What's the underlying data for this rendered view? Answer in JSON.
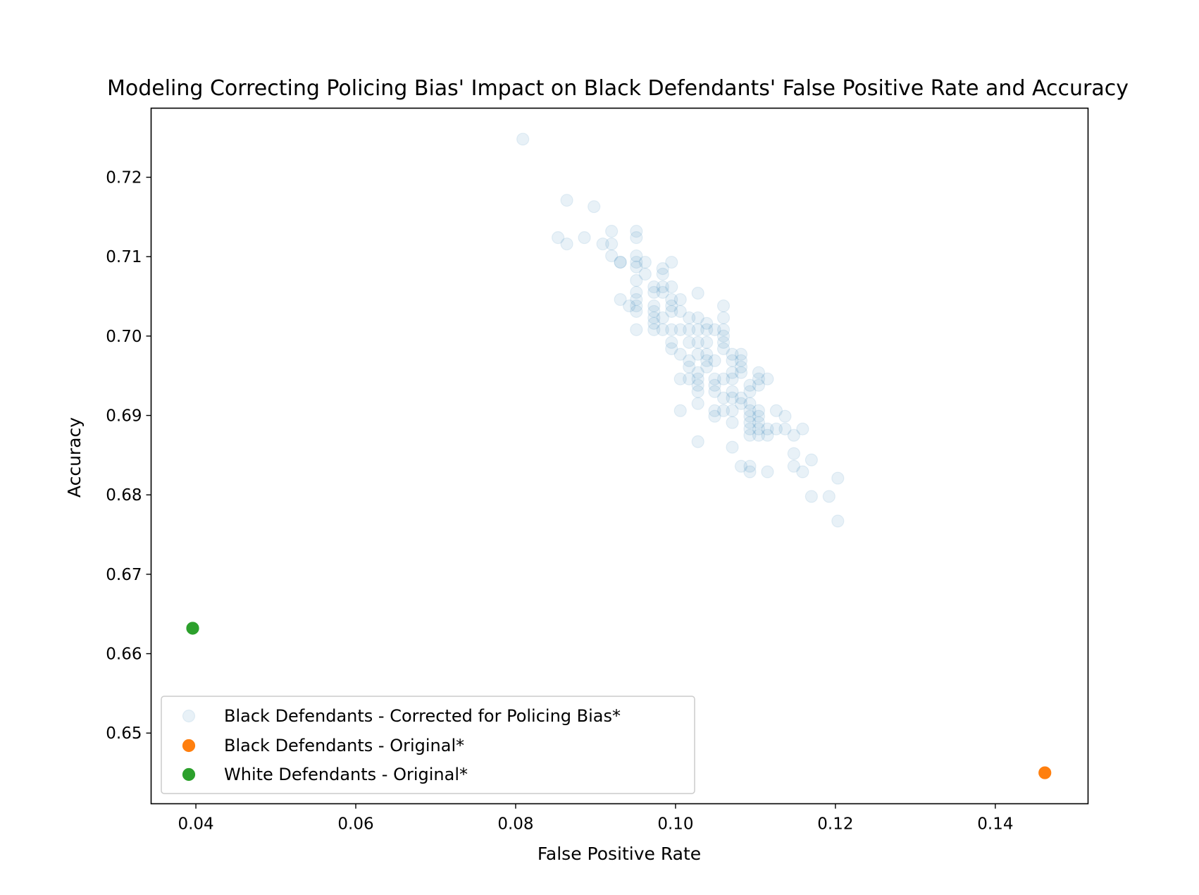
{
  "chart_data": {
    "type": "scatter",
    "title": "Modeling Correcting Policing Bias' Impact on Black Defendants' False Positive Rate and Accuracy",
    "xlabel": "False Positive Rate",
    "ylabel": "Accuracy",
    "xlim": [
      0.0344,
      0.1516
    ],
    "ylim": [
      0.6411,
      0.7287
    ],
    "xticks": [
      0.04,
      0.06,
      0.08,
      0.1,
      0.12,
      0.14
    ],
    "xtick_labels": [
      "0.04",
      "0.06",
      "0.08",
      "0.10",
      "0.12",
      "0.14"
    ],
    "yticks": [
      0.65,
      0.66,
      0.67,
      0.68,
      0.69,
      0.7,
      0.71,
      0.72
    ],
    "ytick_labels": [
      "0.65",
      "0.66",
      "0.67",
      "0.68",
      "0.69",
      "0.70",
      "0.71",
      "0.72"
    ],
    "grid": false,
    "legend_position": "lower-left",
    "series": [
      {
        "name": "Black Defendants - Corrected for Policing Bias*",
        "color": "#1f77b4",
        "alpha": 0.1,
        "filled": true,
        "points": [
          [
            0.0809,
            0.7248
          ],
          [
            0.0864,
            0.7171
          ],
          [
            0.0898,
            0.7163
          ],
          [
            0.0853,
            0.7124
          ],
          [
            0.0864,
            0.7116
          ],
          [
            0.0886,
            0.7124
          ],
          [
            0.0909,
            0.7116
          ],
          [
            0.092,
            0.7132
          ],
          [
            0.092,
            0.7116
          ],
          [
            0.092,
            0.7101
          ],
          [
            0.0931,
            0.7093
          ],
          [
            0.0931,
            0.7093
          ],
          [
            0.0951,
            0.7132
          ],
          [
            0.0951,
            0.7124
          ],
          [
            0.0951,
            0.7101
          ],
          [
            0.0951,
            0.7093
          ],
          [
            0.0951,
            0.7087
          ],
          [
            0.0951,
            0.707
          ],
          [
            0.0951,
            0.7055
          ],
          [
            0.0951,
            0.7046
          ],
          [
            0.0951,
            0.7038
          ],
          [
            0.0951,
            0.7031
          ],
          [
            0.0951,
            0.7008
          ],
          [
            0.0931,
            0.7046
          ],
          [
            0.0942,
            0.7038
          ],
          [
            0.0962,
            0.7093
          ],
          [
            0.0962,
            0.7078
          ],
          [
            0.0973,
            0.7062
          ],
          [
            0.0973,
            0.7055
          ],
          [
            0.0973,
            0.7038
          ],
          [
            0.0973,
            0.7031
          ],
          [
            0.0973,
            0.7023
          ],
          [
            0.0973,
            0.7016
          ],
          [
            0.0973,
            0.7008
          ],
          [
            0.0984,
            0.7085
          ],
          [
            0.0984,
            0.7078
          ],
          [
            0.0984,
            0.7062
          ],
          [
            0.0984,
            0.7055
          ],
          [
            0.0984,
            0.7023
          ],
          [
            0.0984,
            0.7008
          ],
          [
            0.0995,
            0.7093
          ],
          [
            0.0995,
            0.7062
          ],
          [
            0.0995,
            0.7046
          ],
          [
            0.0995,
            0.7038
          ],
          [
            0.0995,
            0.7031
          ],
          [
            0.0995,
            0.7008
          ],
          [
            0.0995,
            0.6992
          ],
          [
            0.0995,
            0.6984
          ],
          [
            0.1006,
            0.7046
          ],
          [
            0.1006,
            0.7031
          ],
          [
            0.1006,
            0.7008
          ],
          [
            0.1006,
            0.6977
          ],
          [
            0.1006,
            0.6946
          ],
          [
            0.1006,
            0.6906
          ],
          [
            0.1017,
            0.7023
          ],
          [
            0.1017,
            0.7008
          ],
          [
            0.1017,
            0.6992
          ],
          [
            0.1017,
            0.6969
          ],
          [
            0.1017,
            0.6961
          ],
          [
            0.1017,
            0.6946
          ],
          [
            0.1028,
            0.7054
          ],
          [
            0.1028,
            0.7023
          ],
          [
            0.1028,
            0.7008
          ],
          [
            0.1028,
            0.6992
          ],
          [
            0.1028,
            0.6977
          ],
          [
            0.1028,
            0.6954
          ],
          [
            0.1028,
            0.6946
          ],
          [
            0.1028,
            0.6938
          ],
          [
            0.1028,
            0.693
          ],
          [
            0.1028,
            0.6915
          ],
          [
            0.1028,
            0.6867
          ],
          [
            0.1039,
            0.7016
          ],
          [
            0.1039,
            0.7008
          ],
          [
            0.1039,
            0.6992
          ],
          [
            0.1039,
            0.6977
          ],
          [
            0.1039,
            0.6969
          ],
          [
            0.1039,
            0.6961
          ],
          [
            0.1049,
            0.7008
          ],
          [
            0.1049,
            0.6969
          ],
          [
            0.1049,
            0.6946
          ],
          [
            0.1049,
            0.6938
          ],
          [
            0.1049,
            0.693
          ],
          [
            0.1049,
            0.6906
          ],
          [
            0.1049,
            0.6899
          ],
          [
            0.106,
            0.7038
          ],
          [
            0.106,
            0.7023
          ],
          [
            0.106,
            0.7008
          ],
          [
            0.106,
            0.7
          ],
          [
            0.106,
            0.6992
          ],
          [
            0.106,
            0.6984
          ],
          [
            0.106,
            0.6946
          ],
          [
            0.106,
            0.6922
          ],
          [
            0.106,
            0.6906
          ],
          [
            0.1071,
            0.6977
          ],
          [
            0.1071,
            0.6969
          ],
          [
            0.1071,
            0.6954
          ],
          [
            0.1071,
            0.6946
          ],
          [
            0.1071,
            0.693
          ],
          [
            0.1071,
            0.6922
          ],
          [
            0.1071,
            0.6906
          ],
          [
            0.1071,
            0.6891
          ],
          [
            0.1071,
            0.686
          ],
          [
            0.1082,
            0.6977
          ],
          [
            0.1082,
            0.6969
          ],
          [
            0.1082,
            0.6961
          ],
          [
            0.1082,
            0.6954
          ],
          [
            0.1082,
            0.6922
          ],
          [
            0.1082,
            0.6915
          ],
          [
            0.1082,
            0.6836
          ],
          [
            0.1093,
            0.6938
          ],
          [
            0.1093,
            0.693
          ],
          [
            0.1093,
            0.6915
          ],
          [
            0.1093,
            0.6906
          ],
          [
            0.1093,
            0.6899
          ],
          [
            0.1093,
            0.6891
          ],
          [
            0.1093,
            0.6883
          ],
          [
            0.1093,
            0.6875
          ],
          [
            0.1093,
            0.6836
          ],
          [
            0.1093,
            0.6829
          ],
          [
            0.1104,
            0.6954
          ],
          [
            0.1104,
            0.6946
          ],
          [
            0.1104,
            0.6938
          ],
          [
            0.1104,
            0.6906
          ],
          [
            0.1104,
            0.6899
          ],
          [
            0.1104,
            0.6891
          ],
          [
            0.1104,
            0.6883
          ],
          [
            0.1104,
            0.6875
          ],
          [
            0.1115,
            0.6946
          ],
          [
            0.1115,
            0.6883
          ],
          [
            0.1115,
            0.6875
          ],
          [
            0.1115,
            0.6829
          ],
          [
            0.1126,
            0.6906
          ],
          [
            0.1126,
            0.6883
          ],
          [
            0.1137,
            0.6899
          ],
          [
            0.1137,
            0.6883
          ],
          [
            0.1148,
            0.6875
          ],
          [
            0.1148,
            0.6852
          ],
          [
            0.1148,
            0.6836
          ],
          [
            0.1159,
            0.6883
          ],
          [
            0.1159,
            0.6829
          ],
          [
            0.117,
            0.6844
          ],
          [
            0.117,
            0.6798
          ],
          [
            0.1192,
            0.6798
          ],
          [
            0.1203,
            0.6821
          ],
          [
            0.1203,
            0.6767
          ]
        ]
      },
      {
        "name": "Black Defendants - Original*",
        "color": "#ff7f0e",
        "alpha": 1,
        "filled": true,
        "points": [
          [
            0.1462,
            0.645
          ]
        ]
      },
      {
        "name": "White Defendants - Original*",
        "color": "#2ca02c",
        "alpha": 1,
        "filled": true,
        "points": [
          [
            0.0396,
            0.6632
          ]
        ]
      }
    ]
  }
}
